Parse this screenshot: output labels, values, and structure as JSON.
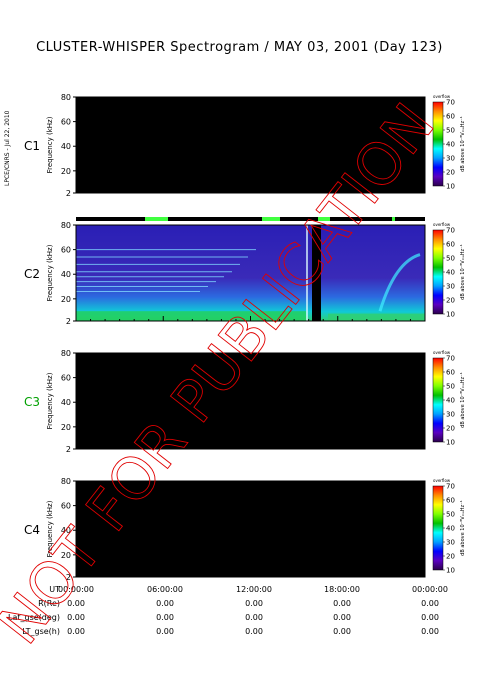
{
  "page": {
    "title": "CLUSTER-WHISPER Spectrogram / MAY 03, 2001 (Day 123)",
    "side_note": "LPCE/CNRS - Jul 22, 2010",
    "watermark": "NOT FOR PUBLICATION"
  },
  "colors": {
    "background": "#ffffff",
    "empty_panel": "#000000",
    "watermark": "#e00000",
    "c3_label": "#00a000"
  },
  "panels": [
    {
      "id": "C1",
      "label": "C1",
      "label_color": "#000000",
      "has_data": false
    },
    {
      "id": "C2",
      "label": "C2",
      "label_color": "#000000",
      "has_data": true
    },
    {
      "id": "C3",
      "label": "C3",
      "label_color": "#00a000",
      "has_data": false
    },
    {
      "id": "C4",
      "label": "C4",
      "label_color": "#000000",
      "has_data": false
    }
  ],
  "colorbar": {
    "top_label": "overflow",
    "ticks": [
      "70",
      "60",
      "50",
      "40",
      "30",
      "20",
      "10"
    ],
    "label": "dB above 10⁻⁸VₘₐHz⁻¹",
    "colors": [
      "#ff0000",
      "#ff8c00",
      "#ffff00",
      "#7fff00",
      "#00c000",
      "#00ffff",
      "#00a0ff",
      "#0000ff",
      "#5a00c0",
      "#2a004a"
    ]
  },
  "footer": {
    "rows": [
      {
        "label": "UT",
        "values": [
          "00:00:00",
          "06:00:00",
          "12:00:00",
          "18:00:00",
          "00:00:00"
        ]
      },
      {
        "label": "R(Re)",
        "values": [
          "0.00",
          "0.00",
          "0.00",
          "0.00",
          "0.00"
        ]
      },
      {
        "label": "Lat_gse(deg)",
        "values": [
          "0.00",
          "0.00",
          "0.00",
          "0.00",
          "0.00"
        ]
      },
      {
        "label": "LT_gse(h)",
        "values": [
          "0.00",
          "0.00",
          "0.00",
          "0.00",
          "0.00"
        ]
      }
    ]
  },
  "chart_data": {
    "type": "heatmap",
    "title": "CLUSTER-WHISPER Spectrogram / MAY 03, 2001 (Day 123)",
    "xlabel": "UT",
    "ylabel": "Frequency (kHz)",
    "x_ticks": [
      "00:00:00",
      "06:00:00",
      "12:00:00",
      "18:00:00",
      "00:00:00"
    ],
    "y_ticks": [
      "80",
      "60",
      "40",
      "20",
      "2"
    ],
    "ylim": [
      2,
      80
    ],
    "colorbar_range": [
      10,
      70
    ],
    "colorbar_unit": "dB above 10⁻⁸VₘₐHz⁻¹",
    "panels": [
      "C1",
      "C2",
      "C3",
      "C4"
    ],
    "c2_data_window_ut": [
      "00:00:00",
      "~23:00:00"
    ],
    "c2_gap_ut": "~16:00:00"
  }
}
